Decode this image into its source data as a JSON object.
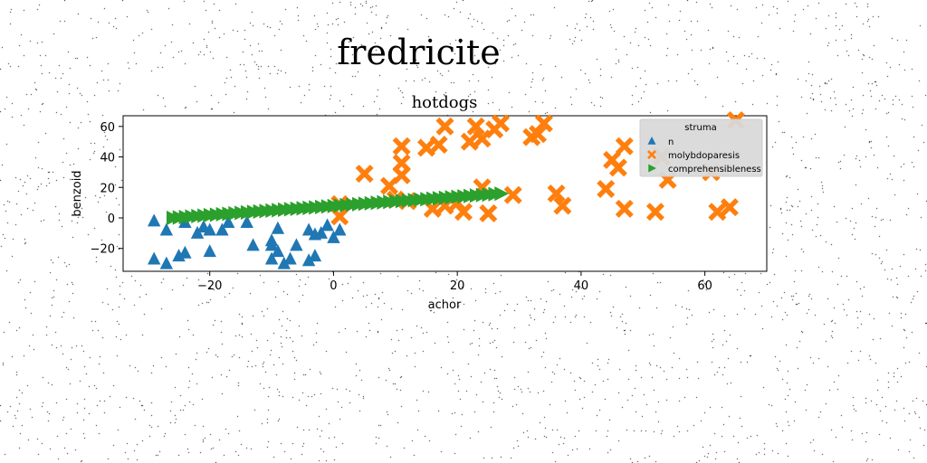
{
  "figure": {
    "suptitle": "fredricite"
  },
  "chart_data": {
    "type": "scatter",
    "title": "hotdogs",
    "xlabel": "achor",
    "ylabel": "benzoid",
    "xlim": [
      -34,
      70
    ],
    "ylim": [
      -35,
      67
    ],
    "xticks": [
      -20,
      0,
      20,
      40,
      60
    ],
    "yticks": [
      -20,
      0,
      20,
      40,
      60
    ],
    "grid": false,
    "legend": {
      "title": "struma",
      "position": "top-right"
    },
    "colors": {
      "n": "#1f77b4",
      "molybdoparesis": "#ff7f0e",
      "comprehensibleness": "#2ca02c"
    },
    "series": [
      {
        "name": "n",
        "marker": "triangle-up",
        "points": [
          [
            -29,
            -2
          ],
          [
            -29,
            -27
          ],
          [
            -27,
            -30
          ],
          [
            -27,
            -8
          ],
          [
            -25,
            -25
          ],
          [
            -24,
            -23
          ],
          [
            -24,
            -3
          ],
          [
            -22,
            -10
          ],
          [
            -21,
            -6
          ],
          [
            -20,
            -8
          ],
          [
            -20,
            -22
          ],
          [
            -18,
            -8
          ],
          [
            -17,
            -3
          ],
          [
            -14,
            -3
          ],
          [
            -13,
            -18
          ],
          [
            -10,
            -15
          ],
          [
            -10,
            -18
          ],
          [
            -10,
            -27
          ],
          [
            -9,
            -22
          ],
          [
            -9,
            -7
          ],
          [
            -8,
            -30
          ],
          [
            -7,
            -27
          ],
          [
            -6,
            -18
          ],
          [
            -4,
            -8
          ],
          [
            -4,
            -28
          ],
          [
            -3,
            -11
          ],
          [
            -3,
            -25
          ],
          [
            -2,
            -10
          ],
          [
            -1,
            -5
          ],
          [
            0,
            -13
          ],
          [
            1,
            -8
          ]
        ]
      },
      {
        "name": "molybdoparesis",
        "marker": "x-filled",
        "points": [
          [
            1,
            9
          ],
          [
            1,
            1
          ],
          [
            5,
            29
          ],
          [
            9,
            21
          ],
          [
            10,
            12
          ],
          [
            11,
            47
          ],
          [
            11,
            28
          ],
          [
            11,
            36
          ],
          [
            12,
            11
          ],
          [
            15,
            46
          ],
          [
            16,
            6
          ],
          [
            17,
            48
          ],
          [
            18,
            8
          ],
          [
            18,
            60
          ],
          [
            20,
            10
          ],
          [
            21,
            4
          ],
          [
            22,
            50
          ],
          [
            23,
            60
          ],
          [
            24,
            52
          ],
          [
            24,
            20
          ],
          [
            25,
            3
          ],
          [
            26,
            58
          ],
          [
            27,
            62
          ],
          [
            29,
            15
          ],
          [
            32,
            53
          ],
          [
            33,
            55
          ],
          [
            34,
            62
          ],
          [
            36,
            16
          ],
          [
            37,
            8
          ],
          [
            44,
            19
          ],
          [
            45,
            38
          ],
          [
            46,
            33
          ],
          [
            47,
            47
          ],
          [
            47,
            6
          ],
          [
            52,
            4
          ],
          [
            53,
            40
          ],
          [
            54,
            25
          ],
          [
            61,
            30
          ],
          [
            62,
            4
          ],
          [
            64,
            7
          ],
          [
            65,
            64
          ]
        ]
      },
      {
        "name": "comprehensibleness",
        "marker": "triangle-right",
        "points": [
          [
            -26,
            0
          ],
          [
            -25,
            0.3
          ],
          [
            -24,
            0.6
          ],
          [
            -23,
            0.9
          ],
          [
            -22,
            1.2
          ],
          [
            -21,
            1.5
          ],
          [
            -20,
            1.8
          ],
          [
            -19,
            2.1
          ],
          [
            -18,
            2.4
          ],
          [
            -17,
            2.7
          ],
          [
            -16,
            3
          ],
          [
            -15,
            3.3
          ],
          [
            -14,
            3.6
          ],
          [
            -13,
            3.9
          ],
          [
            -12,
            4.2
          ],
          [
            -11,
            4.5
          ],
          [
            -10,
            4.8
          ],
          [
            -9,
            5.1
          ],
          [
            -8,
            5.4
          ],
          [
            -7,
            5.7
          ],
          [
            -6,
            6
          ],
          [
            -5,
            6.3
          ],
          [
            -4,
            6.6
          ],
          [
            -3,
            6.9
          ],
          [
            -2,
            7.2
          ],
          [
            -1,
            7.5
          ],
          [
            0,
            7.8
          ],
          [
            1,
            8.1
          ],
          [
            2,
            8.4
          ],
          [
            3,
            8.7
          ],
          [
            4,
            9
          ],
          [
            5,
            9.3
          ],
          [
            6,
            9.6
          ],
          [
            7,
            9.9
          ],
          [
            8,
            10.2
          ],
          [
            9,
            10.5
          ],
          [
            10,
            10.8
          ],
          [
            11,
            11.1
          ],
          [
            12,
            11.4
          ],
          [
            13,
            11.7
          ],
          [
            14,
            12
          ],
          [
            15,
            12.3
          ],
          [
            16,
            12.6
          ],
          [
            17,
            12.9
          ],
          [
            18,
            13.2
          ],
          [
            19,
            13.5
          ],
          [
            20,
            13.8
          ],
          [
            21,
            14.1
          ],
          [
            22,
            14.4
          ],
          [
            23,
            14.7
          ],
          [
            24,
            15
          ],
          [
            25,
            15.3
          ],
          [
            26,
            15.6
          ],
          [
            27,
            15.9
          ]
        ]
      }
    ]
  }
}
